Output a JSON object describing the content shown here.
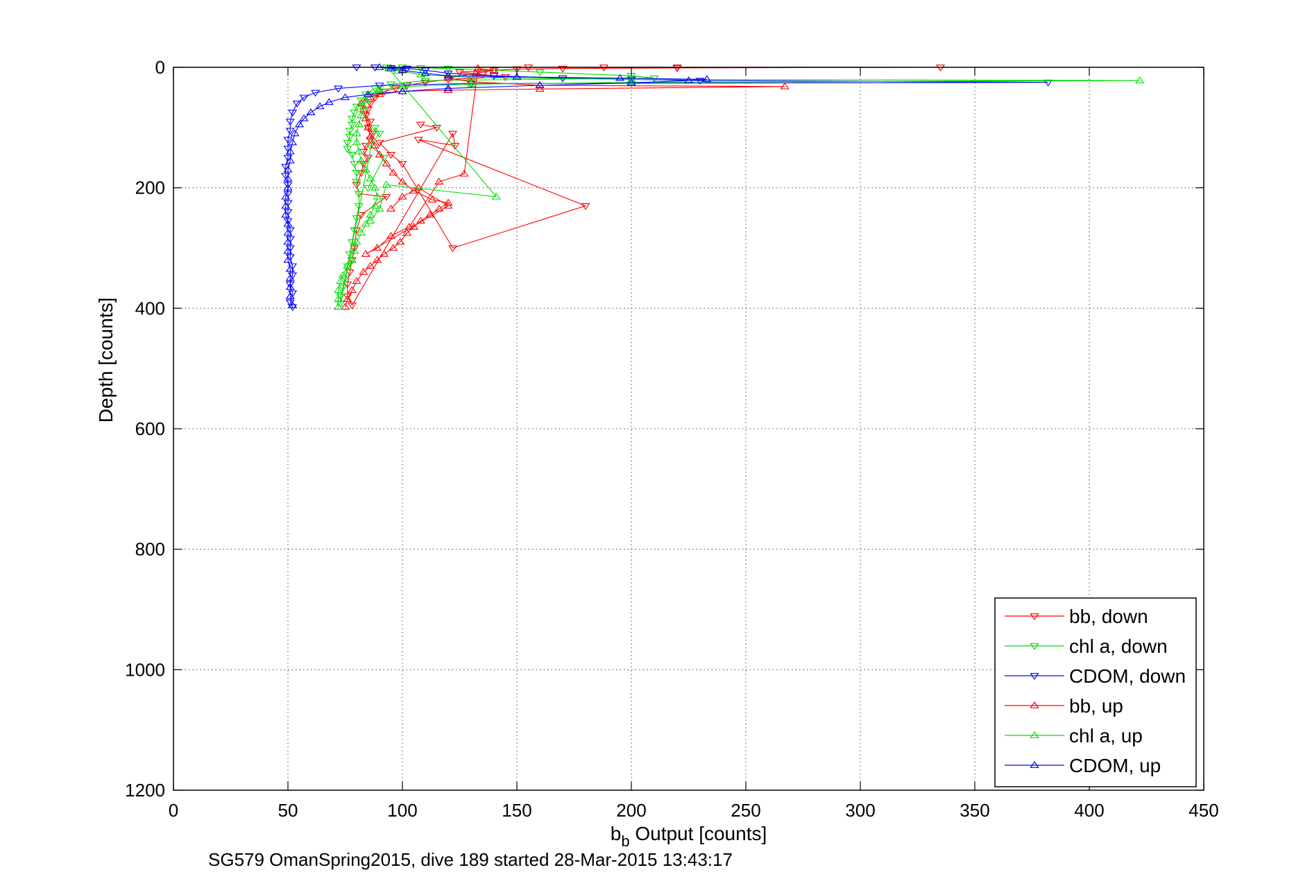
{
  "chart_data": {
    "type": "scatter",
    "xlabel_main": "b",
    "xlabel_sub": "b",
    "xlabel_rest": " Output [counts]",
    "ylabel": "Depth [counts]",
    "caption": "SG579 OmanSpring2015, dive 189 started 28-Mar-2015 13:43:17",
    "xlim": [
      0,
      450
    ],
    "ylim": [
      0,
      1200
    ],
    "y_reversed": true,
    "grid": true,
    "grid_style": "dotted",
    "legend_position": "bottom-right",
    "x_ticks": [
      "0",
      "50",
      "100",
      "150",
      "200",
      "250",
      "300",
      "350",
      "400",
      "450"
    ],
    "y_ticks": [
      "0",
      "200",
      "400",
      "600",
      "800",
      "1000",
      "1200"
    ],
    "series": [
      {
        "name": "bb, down",
        "color": "#ff0000",
        "marker": "triangle-down",
        "connected": true,
        "points": [
          [
            155,
            0
          ],
          [
            188,
            0
          ],
          [
            220,
            0
          ],
          [
            335,
            0
          ],
          [
            220,
            1
          ],
          [
            170,
            2
          ],
          [
            150,
            3
          ],
          [
            140,
            5
          ],
          [
            125,
            8
          ],
          [
            135,
            12
          ],
          [
            145,
            16
          ],
          [
            120,
            20
          ],
          [
            110,
            25
          ],
          [
            102,
            30
          ],
          [
            97,
            35
          ],
          [
            92,
            40
          ],
          [
            88,
            50
          ],
          [
            86,
            60
          ],
          [
            85,
            70
          ],
          [
            84,
            80
          ],
          [
            86,
            90
          ],
          [
            85,
            100
          ],
          [
            87,
            110
          ],
          [
            86,
            120
          ],
          [
            84,
            130
          ],
          [
            83,
            140
          ],
          [
            85,
            150
          ],
          [
            83,
            160
          ],
          [
            82,
            175
          ],
          [
            80,
            195
          ],
          [
            81,
            210
          ],
          [
            93,
            215
          ],
          [
            82,
            245
          ],
          [
            80,
            270
          ],
          [
            79,
            300
          ],
          [
            78,
            320
          ],
          [
            77,
            340
          ],
          [
            76,
            360
          ],
          [
            76,
            380
          ],
          [
            78,
            395
          ],
          [
            122,
            110
          ],
          [
            123,
            130
          ],
          [
            107,
            120
          ],
          [
            180,
            230
          ],
          [
            122,
            300
          ],
          [
            100,
            160
          ],
          [
            95,
            145
          ],
          [
            90,
            125
          ],
          [
            115,
            100
          ],
          [
            108,
            95
          ]
        ]
      },
      {
        "name": "chl a, down",
        "color": "#00dd00",
        "marker": "triangle-down",
        "connected": true,
        "points": [
          [
            93,
            0
          ],
          [
            100,
            0
          ],
          [
            108,
            1
          ],
          [
            120,
            2
          ],
          [
            160,
            8
          ],
          [
            200,
            14
          ],
          [
            210,
            18
          ],
          [
            110,
            22
          ],
          [
            95,
            28
          ],
          [
            88,
            35
          ],
          [
            84,
            45
          ],
          [
            82,
            55
          ],
          [
            80,
            65
          ],
          [
            79,
            75
          ],
          [
            78,
            85
          ],
          [
            78,
            95
          ],
          [
            77,
            105
          ],
          [
            77,
            115
          ],
          [
            76,
            125
          ],
          [
            76,
            135
          ],
          [
            78,
            145
          ],
          [
            79,
            160
          ],
          [
            80,
            175
          ],
          [
            80,
            190
          ],
          [
            81,
            210
          ],
          [
            81,
            230
          ],
          [
            80,
            250
          ],
          [
            79,
            270
          ],
          [
            78,
            290
          ],
          [
            77,
            310
          ],
          [
            76,
            330
          ],
          [
            75,
            350
          ],
          [
            74,
            365
          ],
          [
            73,
            380
          ],
          [
            73,
            392
          ],
          [
            88,
            100
          ],
          [
            90,
            110
          ],
          [
            86,
            130
          ],
          [
            92,
            150
          ],
          [
            85,
            200
          ]
        ]
      },
      {
        "name": "CDOM, down",
        "color": "#0000ff",
        "marker": "triangle-down",
        "connected": true,
        "points": [
          [
            80,
            0
          ],
          [
            88,
            0
          ],
          [
            95,
            1
          ],
          [
            102,
            2
          ],
          [
            110,
            5
          ],
          [
            120,
            10
          ],
          [
            140,
            14
          ],
          [
            170,
            18
          ],
          [
            200,
            20
          ],
          [
            230,
            22
          ],
          [
            382,
            25
          ],
          [
            130,
            27
          ],
          [
            90,
            30
          ],
          [
            72,
            35
          ],
          [
            62,
            42
          ],
          [
            57,
            50
          ],
          [
            54,
            60
          ],
          [
            52,
            75
          ],
          [
            51,
            90
          ],
          [
            51,
            105
          ],
          [
            50,
            120
          ],
          [
            50,
            135
          ],
          [
            50,
            150
          ],
          [
            49,
            165
          ],
          [
            49,
            180
          ],
          [
            50,
            195
          ],
          [
            50,
            210
          ],
          [
            50,
            225
          ],
          [
            50,
            240
          ],
          [
            50,
            255
          ],
          [
            51,
            270
          ],
          [
            51,
            285
          ],
          [
            51,
            300
          ],
          [
            51,
            315
          ],
          [
            52,
            330
          ],
          [
            52,
            345
          ],
          [
            51,
            360
          ],
          [
            52,
            375
          ],
          [
            51,
            390
          ],
          [
            52,
            398
          ]
        ]
      },
      {
        "name": "bb, up",
        "color": "#ff0000",
        "marker": "triangle-up",
        "connected": true,
        "points": [
          [
            75,
            398
          ],
          [
            76,
            385
          ],
          [
            78,
            370
          ],
          [
            80,
            355
          ],
          [
            83,
            340
          ],
          [
            86,
            330
          ],
          [
            89,
            320
          ],
          [
            92,
            310
          ],
          [
            96,
            300
          ],
          [
            99,
            290
          ],
          [
            102,
            275
          ],
          [
            105,
            265
          ],
          [
            108,
            255
          ],
          [
            112,
            245
          ],
          [
            116,
            235
          ],
          [
            120,
            225
          ],
          [
            113,
            220
          ],
          [
            105,
            205
          ],
          [
            100,
            190
          ],
          [
            96,
            175
          ],
          [
            93,
            160
          ],
          [
            90,
            145
          ],
          [
            88,
            130
          ],
          [
            86,
            115
          ],
          [
            85,
            100
          ],
          [
            84,
            85
          ],
          [
            83,
            70
          ],
          [
            82,
            60
          ],
          [
            85,
            50
          ],
          [
            90,
            45
          ],
          [
            100,
            40
          ],
          [
            120,
            38
          ],
          [
            160,
            36
          ],
          [
            267,
            32
          ],
          [
            160,
            30
          ],
          [
            130,
            24
          ],
          [
            120,
            18
          ],
          [
            132,
            10
          ],
          [
            140,
            5
          ],
          [
            133,
            2
          ],
          [
            127,
            177
          ],
          [
            116,
            190
          ],
          [
            103,
            265
          ],
          [
            95,
            280
          ],
          [
            89,
            300
          ],
          [
            84,
            310
          ],
          [
            120,
            230
          ],
          [
            107,
            200
          ],
          [
            100,
            215
          ],
          [
            95,
            235
          ]
        ]
      },
      {
        "name": "chl a, up",
        "color": "#00dd00",
        "marker": "triangle-up",
        "connected": true,
        "points": [
          [
            72,
            398
          ],
          [
            72,
            385
          ],
          [
            72,
            370
          ],
          [
            73,
            355
          ],
          [
            74,
            345
          ],
          [
            76,
            330
          ],
          [
            78,
            320
          ],
          [
            79,
            305
          ],
          [
            80,
            290
          ],
          [
            82,
            275
          ],
          [
            84,
            260
          ],
          [
            86,
            245
          ],
          [
            88,
            230
          ],
          [
            89,
            215
          ],
          [
            88,
            200
          ],
          [
            86,
            185
          ],
          [
            84,
            170
          ],
          [
            82,
            155
          ],
          [
            81,
            140
          ],
          [
            80,
            125
          ],
          [
            80,
            110
          ],
          [
            81,
            95
          ],
          [
            82,
            80
          ],
          [
            83,
            65
          ],
          [
            84,
            55
          ],
          [
            86,
            45
          ],
          [
            90,
            38
          ],
          [
            100,
            32
          ],
          [
            130,
            28
          ],
          [
            200,
            25
          ],
          [
            422,
            22
          ],
          [
            200,
            20
          ],
          [
            130,
            17
          ],
          [
            108,
            12
          ],
          [
            98,
            6
          ],
          [
            94,
            2
          ],
          [
            141,
            215
          ],
          [
            93,
            195
          ],
          [
            90,
            235
          ],
          [
            86,
            255
          ]
        ]
      },
      {
        "name": "CDOM, up",
        "color": "#0000ff",
        "marker": "triangle-up",
        "connected": true,
        "points": [
          [
            52,
            395
          ],
          [
            51,
            380
          ],
          [
            51,
            365
          ],
          [
            51,
            350
          ],
          [
            51,
            335
          ],
          [
            50,
            320
          ],
          [
            50,
            305
          ],
          [
            50,
            290
          ],
          [
            50,
            275
          ],
          [
            50,
            260
          ],
          [
            49,
            245
          ],
          [
            49,
            230
          ],
          [
            49,
            215
          ],
          [
            50,
            200
          ],
          [
            50,
            185
          ],
          [
            50,
            170
          ],
          [
            51,
            155
          ],
          [
            51,
            140
          ],
          [
            52,
            125
          ],
          [
            53,
            110
          ],
          [
            55,
            95
          ],
          [
            57,
            85
          ],
          [
            60,
            75
          ],
          [
            64,
            65
          ],
          [
            68,
            58
          ],
          [
            75,
            50
          ],
          [
            85,
            45
          ],
          [
            100,
            40
          ],
          [
            120,
            35
          ],
          [
            160,
            30
          ],
          [
            200,
            26
          ],
          [
            225,
            22
          ],
          [
            233,
            20
          ],
          [
            195,
            18
          ],
          [
            150,
            16
          ],
          [
            120,
            14
          ],
          [
            110,
            10
          ],
          [
            100,
            5
          ],
          [
            95,
            2
          ],
          [
            90,
            0
          ]
        ]
      }
    ]
  }
}
